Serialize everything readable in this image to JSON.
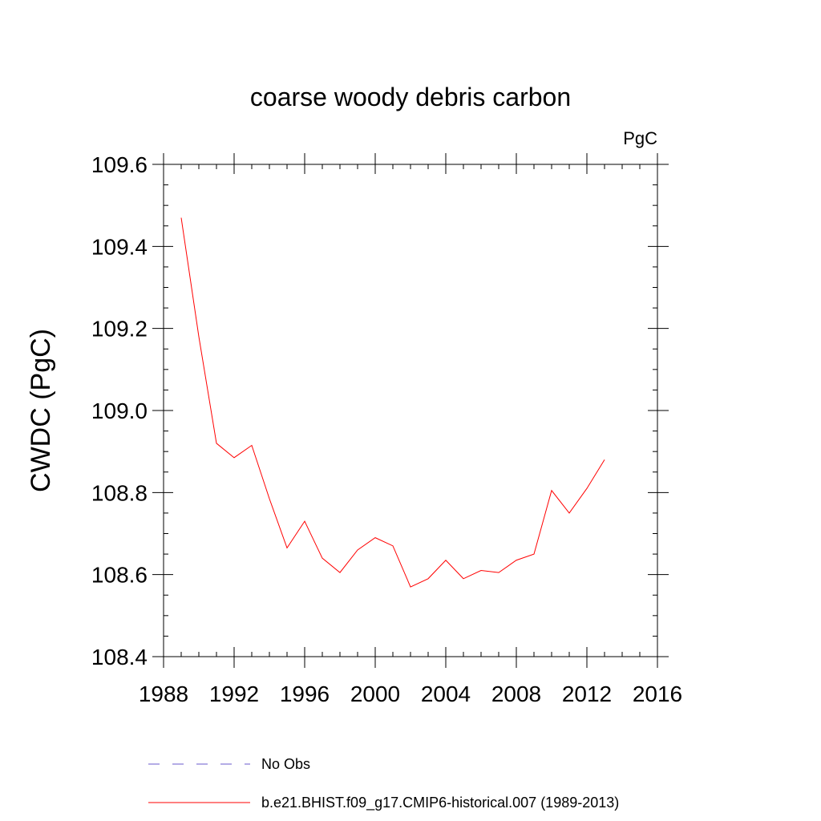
{
  "chart_data": {
    "type": "line",
    "title": "coarse woody debris carbon",
    "units_label": "PgC",
    "ylabel": "CWDC  (PgC)",
    "xlabel": "",
    "xlim": [
      1988,
      2016
    ],
    "ylim": [
      108.4,
      109.6
    ],
    "x_ticks": [
      "1988",
      "1992",
      "1996",
      "2000",
      "2004",
      "2008",
      "2012",
      "2016"
    ],
    "y_ticks": [
      "108.4",
      "108.6",
      "108.8",
      "109.0",
      "109.2",
      "109.4",
      "109.6"
    ],
    "grid": false,
    "legend_position": "bottom",
    "series": [
      {
        "name": "No Obs",
        "color": "#6a5acd",
        "style": "dashed",
        "x": [],
        "values": []
      },
      {
        "name": "b.e21.BHIST.f09_g17.CMIP6-historical.007 (1989-2013)",
        "color": "#ff0000",
        "style": "solid",
        "x": [
          1989,
          1990,
          1991,
          1992,
          1993,
          1994,
          1995,
          1996,
          1997,
          1998,
          1999,
          2000,
          2001,
          2002,
          2003,
          2004,
          2005,
          2006,
          2007,
          2008,
          2009,
          2010,
          2011,
          2012,
          2013
        ],
        "values": [
          109.47,
          109.18,
          108.92,
          108.885,
          108.915,
          108.785,
          108.665,
          108.73,
          108.64,
          108.605,
          108.66,
          108.69,
          108.67,
          108.57,
          108.59,
          108.635,
          108.59,
          108.61,
          108.605,
          108.635,
          108.65,
          108.805,
          108.75,
          108.81,
          108.88
        ]
      }
    ]
  }
}
